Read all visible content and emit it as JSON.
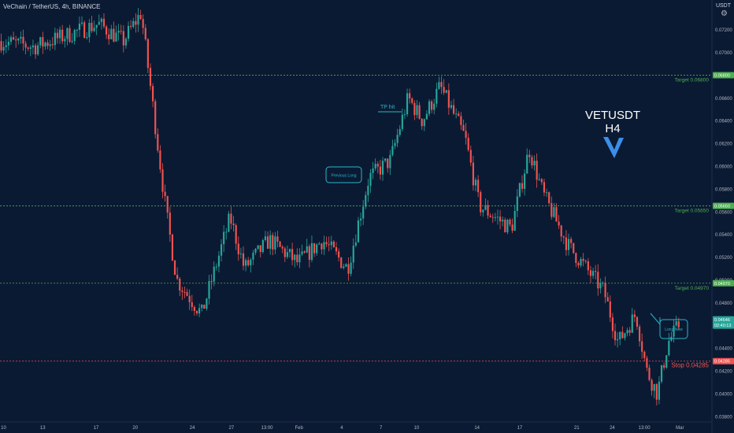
{
  "header": {
    "symbol_line": "VeChain / TetherUS, 4h, BINANCE",
    "currency": "USDT",
    "gear_icon": "settings-gear-icon"
  },
  "colors": {
    "background": "#0b1a33",
    "up": "#26a69a",
    "down": "#ef5350",
    "target_line": "#4caf50",
    "stop_line": "#ef5350",
    "accent": "#2ab7ca",
    "axis_text": "#b2b5be"
  },
  "chart_data": {
    "type": "candlestick",
    "title": "VETUSDT",
    "subtitle": "H4",
    "ylim": [
      0.0375,
      0.0735
    ],
    "y_ticks": [
      "0.07200",
      "0.07000",
      "0.06800",
      "0.06600",
      "0.06400",
      "0.06200",
      "0.06000",
      "0.05800",
      "0.05600",
      "0.05400",
      "0.05200",
      "0.05000",
      "0.04800",
      "0.04600",
      "0.04400",
      "0.04200",
      "0.04000",
      "0.03800"
    ],
    "x_ticks": [
      "10",
      "13",
      "17",
      "20",
      "24",
      "27",
      "13:00",
      "Feb",
      "4",
      "7",
      "10",
      "14",
      "17",
      "21",
      "24",
      "13:00",
      "Mar"
    ],
    "anchors": [
      {
        "t": 0,
        "p": 0.071
      },
      {
        "t": 0.05,
        "p": 0.0705
      },
      {
        "t": 0.14,
        "p": 0.0725
      },
      {
        "t": 0.175,
        "p": 0.071
      },
      {
        "t": 0.2,
        "p": 0.0735
      },
      {
        "t": 0.215,
        "p": 0.066
      },
      {
        "t": 0.235,
        "p": 0.056
      },
      {
        "t": 0.25,
        "p": 0.05
      },
      {
        "t": 0.285,
        "p": 0.047
      },
      {
        "t": 0.325,
        "p": 0.0555
      },
      {
        "t": 0.345,
        "p": 0.051
      },
      {
        "t": 0.38,
        "p": 0.0535
      },
      {
        "t": 0.42,
        "p": 0.0515
      },
      {
        "t": 0.455,
        "p": 0.0535
      },
      {
        "t": 0.49,
        "p": 0.051
      },
      {
        "t": 0.52,
        "p": 0.059
      },
      {
        "t": 0.55,
        "p": 0.0605
      },
      {
        "t": 0.575,
        "p": 0.066
      },
      {
        "t": 0.595,
        "p": 0.064
      },
      {
        "t": 0.62,
        "p": 0.067
      },
      {
        "t": 0.655,
        "p": 0.0625
      },
      {
        "t": 0.675,
        "p": 0.0565
      },
      {
        "t": 0.72,
        "p": 0.0545
      },
      {
        "t": 0.745,
        "p": 0.0615
      },
      {
        "t": 0.765,
        "p": 0.0575
      },
      {
        "t": 0.8,
        "p": 0.053
      },
      {
        "t": 0.85,
        "p": 0.049
      },
      {
        "t": 0.87,
        "p": 0.0445
      },
      {
        "t": 0.895,
        "p": 0.047
      },
      {
        "t": 0.91,
        "p": 0.042
      },
      {
        "t": 0.925,
        "p": 0.04
      },
      {
        "t": 0.94,
        "p": 0.0445
      },
      {
        "t": 0.955,
        "p": 0.046
      }
    ],
    "levels": [
      {
        "name": "Target 0.06800",
        "axis_label": "0.06800",
        "price": 0.068,
        "kind": "target"
      },
      {
        "name": "Target 0.05650",
        "axis_label": "0.05650",
        "price": 0.0565,
        "kind": "target"
      },
      {
        "name": "Target 0.04970",
        "axis_label": "0.04970",
        "price": 0.0497,
        "kind": "target"
      },
      {
        "name": "Stop 0.04285",
        "axis_label": "0.04285",
        "price": 0.04285,
        "kind": "stop"
      }
    ],
    "last_price": {
      "label": "0.04646",
      "timer": "02:40:13",
      "price": 0.04646
    },
    "annotations": {
      "tp_hit": "TP hit",
      "previous_long": "Previous Long",
      "long_now": "Long Now"
    },
    "logo": "vechain-v-logo"
  }
}
